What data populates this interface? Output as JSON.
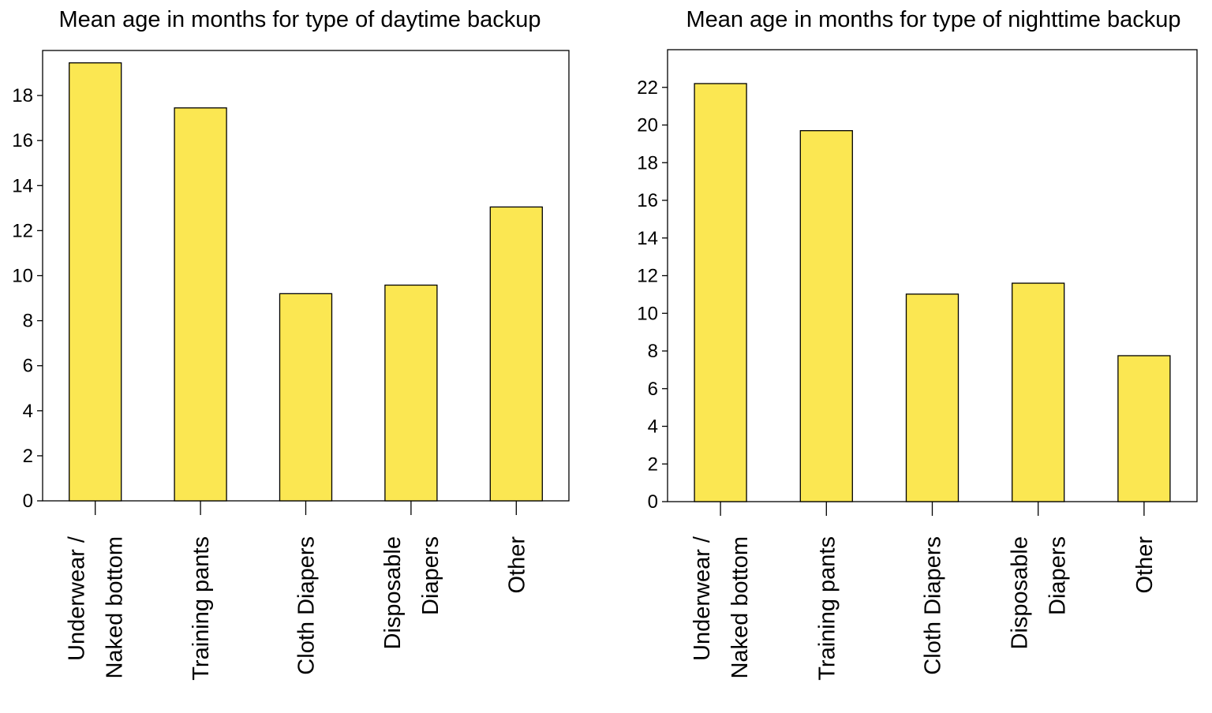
{
  "colors": {
    "bar_fill": "#fbe752",
    "bar_stroke": "#000000",
    "background": "#ffffff"
  },
  "chart_data": [
    {
      "type": "bar",
      "title": "Mean age in months for type of daytime backup",
      "xlabel": "",
      "ylabel": "",
      "categories": [
        [
          "Underwear /",
          "Naked bottom"
        ],
        [
          "Training pants"
        ],
        [
          "Cloth Diapers"
        ],
        [
          "Disposable",
          "Diapers"
        ],
        [
          "Other"
        ]
      ],
      "values": [
        19.45,
        17.45,
        9.2,
        9.58,
        13.05
      ],
      "ylim": [
        0,
        20
      ],
      "yticks": [
        0,
        2,
        4,
        6,
        8,
        10,
        12,
        14,
        16,
        18
      ],
      "grid": false,
      "legend": "none"
    },
    {
      "type": "bar",
      "title": "Mean age in months for type of nighttime backup",
      "xlabel": "",
      "ylabel": "",
      "categories": [
        [
          "Underwear /",
          "Naked bottom"
        ],
        [
          "Training pants"
        ],
        [
          "Cloth Diapers"
        ],
        [
          "Disposable",
          "Diapers"
        ],
        [
          "Other"
        ]
      ],
      "values": [
        22.2,
        19.7,
        11.02,
        11.6,
        7.75
      ],
      "ylim": [
        0,
        24
      ],
      "yticks": [
        0,
        2,
        4,
        6,
        8,
        10,
        12,
        14,
        16,
        18,
        20,
        22
      ],
      "grid": false,
      "legend": "none"
    }
  ]
}
